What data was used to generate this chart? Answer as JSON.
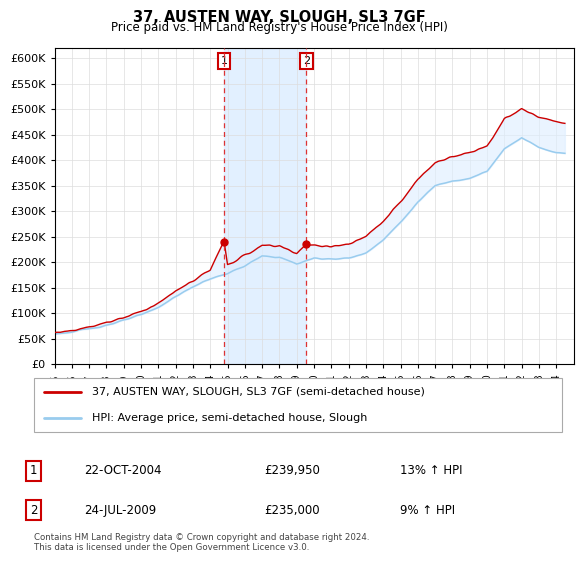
{
  "title": "37, AUSTEN WAY, SLOUGH, SL3 7GF",
  "subtitle": "Price paid vs. HM Land Registry's House Price Index (HPI)",
  "ylim": [
    0,
    620000
  ],
  "yticks": [
    0,
    50000,
    100000,
    150000,
    200000,
    250000,
    300000,
    350000,
    400000,
    450000,
    500000,
    550000,
    600000
  ],
  "xlim_start": 1995,
  "xlim_end": 2025,
  "transaction1": {
    "date": 2004.8,
    "price": 239950,
    "label": "1"
  },
  "transaction2": {
    "date": 2009.55,
    "price": 235000,
    "label": "2"
  },
  "legend_line1": "37, AUSTEN WAY, SLOUGH, SL3 7GF (semi-detached house)",
  "legend_line2": "HPI: Average price, semi-detached house, Slough",
  "table_rows": [
    {
      "num": "1",
      "date": "22-OCT-2004",
      "price": "£239,950",
      "hpi": "13% ↑ HPI"
    },
    {
      "num": "2",
      "date": "24-JUL-2009",
      "price": "£235,000",
      "hpi": "9% ↑ HPI"
    }
  ],
  "footer": "Contains HM Land Registry data © Crown copyright and database right 2024.\nThis data is licensed under the Open Government Licence v3.0.",
  "line_color_red": "#cc0000",
  "line_color_blue": "#99ccee",
  "shading_color": "#ddeeff",
  "vline_color": "#dd3333",
  "background_color": "#ffffff",
  "years_hpi": [
    1995,
    1996,
    1997,
    1998,
    1999,
    2000,
    2001,
    2002,
    2003,
    2004,
    2005,
    2006,
    2007,
    2008,
    2009,
    2010,
    2011,
    2012,
    2013,
    2014,
    2015,
    2016,
    2017,
    2018,
    2019,
    2020,
    2021,
    2022,
    2023,
    2024,
    2024.5
  ],
  "hpi_values": [
    60000,
    63000,
    70000,
    77000,
    86000,
    97000,
    112000,
    133000,
    152000,
    168000,
    178000,
    193000,
    212000,
    210000,
    197000,
    208000,
    207000,
    208000,
    218000,
    245000,
    278000,
    318000,
    350000,
    360000,
    365000,
    378000,
    422000,
    445000,
    425000,
    415000,
    415000
  ],
  "years_red": [
    1995,
    1996,
    1997,
    1998,
    1999,
    2000,
    2001,
    2002,
    2003,
    2004,
    2004.8,
    2005,
    2006,
    2007,
    2008,
    2009,
    2009.55,
    2010,
    2011,
    2012,
    2013,
    2014,
    2015,
    2016,
    2017,
    2018,
    2019,
    2020,
    2021,
    2022,
    2023,
    2024,
    2024.5
  ],
  "red_values": [
    63000,
    66000,
    74000,
    82000,
    92000,
    104000,
    120000,
    143000,
    164000,
    185000,
    239950,
    196000,
    213000,
    233000,
    232000,
    218000,
    235000,
    232000,
    232000,
    235000,
    250000,
    280000,
    318000,
    362000,
    395000,
    408000,
    415000,
    428000,
    480000,
    500000,
    485000,
    475000,
    470000
  ]
}
